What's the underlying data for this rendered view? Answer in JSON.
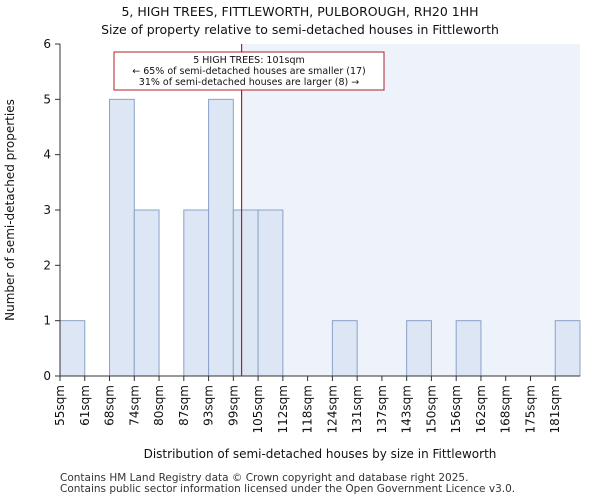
{
  "chart_data": {
    "type": "bar",
    "title": "5, HIGH TREES, FITTLEWORTH, PULBOROUGH, RH20 1HH",
    "subtitle": "Size of property relative to semi-detached houses in Fittleworth",
    "xlabel": "Distribution of semi-detached houses by size in Fittleworth",
    "ylabel": "Number of semi-detached properties",
    "ylim": [
      0,
      6
    ],
    "yticks": [
      0,
      1,
      2,
      3,
      4,
      5,
      6
    ],
    "categories": [
      "55sqm",
      "61sqm",
      "68sqm",
      "74sqm",
      "80sqm",
      "87sqm",
      "93sqm",
      "99sqm",
      "105sqm",
      "112sqm",
      "118sqm",
      "124sqm",
      "131sqm",
      "137sqm",
      "143sqm",
      "150sqm",
      "156sqm",
      "162sqm",
      "168sqm",
      "175sqm",
      "181sqm"
    ],
    "values": [
      1,
      0,
      5,
      3,
      0,
      3,
      5,
      3,
      3,
      0,
      0,
      1,
      0,
      0,
      1,
      0,
      1,
      0,
      0,
      0,
      1
    ],
    "marker": {
      "value_sqm": 101,
      "label_lines": [
        "5 HIGH TREES: 101sqm",
        "← 65% of semi-detached houses are smaller (17)",
        "31% of semi-detached houses are larger (8) →"
      ],
      "color": "#b0202a"
    },
    "bar_fill": "#dce6f5",
    "bar_edge": "#8aa2c8",
    "shade_fill": "#eef2fb",
    "grid": false
  },
  "footer": {
    "line1": "Contains HM Land Registry data © Crown copyright and database right 2025.",
    "line2": "Contains public sector information licensed under the Open Government Licence v3.0."
  }
}
